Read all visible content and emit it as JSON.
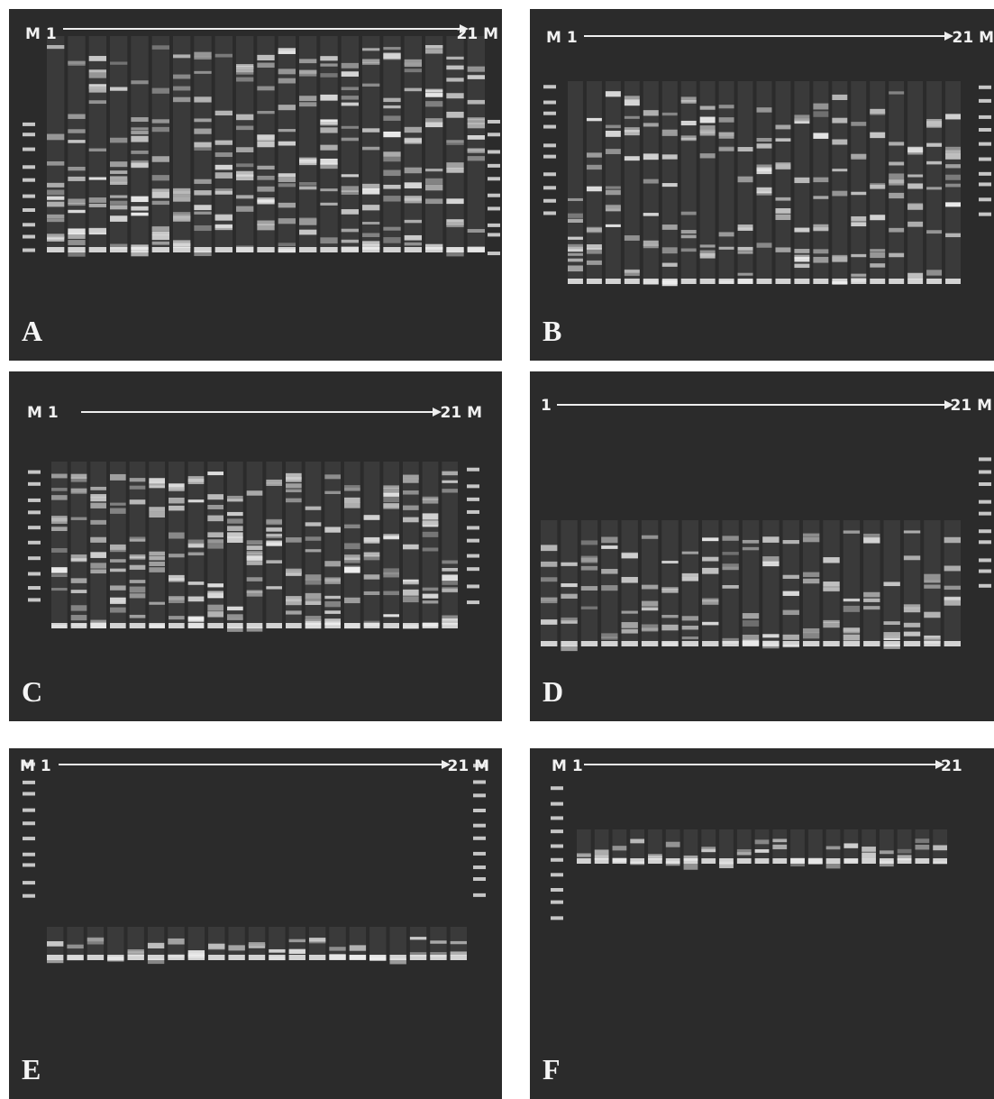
{
  "panels": [
    {
      "letter": "A",
      "left_label": "M 1",
      "right_label": "21 M"
    },
    {
      "letter": "B",
      "left_label": "M 1",
      "right_label": "21 M"
    },
    {
      "letter": "C",
      "left_label": "M 1",
      "right_label": "21 M"
    },
    {
      "letter": "D",
      "left_label": "1",
      "right_label": "21 M"
    },
    {
      "letter": "E",
      "left_label": "M 1",
      "right_label": "21 M"
    },
    {
      "letter": "F",
      "left_label": "M 1",
      "right_label": "21"
    }
  ]
}
